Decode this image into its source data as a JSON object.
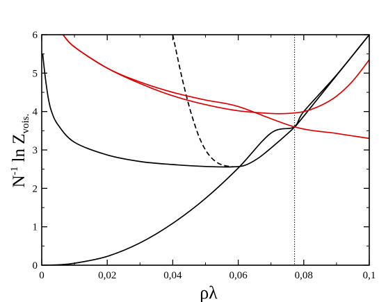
{
  "chart_data": {
    "type": "line",
    "title": "",
    "xlabel": "ρλ",
    "ylabel_main": "N",
    "ylabel_sup": "-1",
    "ylabel_mid": " ln Z",
    "ylabel_sub": "vois.",
    "xlim": [
      0,
      0.1
    ],
    "ylim": [
      0,
      6
    ],
    "grid": false,
    "x_ticks": [
      {
        "value": 0,
        "label": "0"
      },
      {
        "value": 0.02,
        "label": "0,02"
      },
      {
        "value": 0.04,
        "label": "0,04"
      },
      {
        "value": 0.06,
        "label": "0,06"
      },
      {
        "value": 0.08,
        "label": "0,08"
      },
      {
        "value": 0.1,
        "label": "0,1"
      }
    ],
    "y_ticks": [
      {
        "value": 0,
        "label": "0"
      },
      {
        "value": 1,
        "label": "1"
      },
      {
        "value": 2,
        "label": "2"
      },
      {
        "value": 3,
        "label": "3"
      },
      {
        "value": 4,
        "label": "4"
      },
      {
        "value": 5,
        "label": "5"
      },
      {
        "value": 6,
        "label": "6"
      }
    ],
    "vline": {
      "x": 0.0772,
      "color": "#000000",
      "style": "dotted"
    },
    "series": [
      {
        "color": "#000000",
        "style": "solid",
        "points": [
          [
            0,
            0
          ],
          [
            0.005,
            0.01
          ],
          [
            0.01,
            0.05
          ],
          [
            0.02,
            0.23
          ],
          [
            0.03,
            0.58
          ],
          [
            0.04,
            1.09
          ],
          [
            0.05,
            1.74
          ],
          [
            0.06,
            2.53
          ],
          [
            0.07,
            3.44
          ],
          [
            0.077,
            3.6
          ],
          [
            0.08,
            4.0
          ],
          [
            0.09,
            4.95
          ],
          [
            0.1,
            6.0
          ]
        ]
      },
      {
        "color": "#000000",
        "style": "solid",
        "points": [
          [
            0.0003,
            5.5
          ],
          [
            0.001,
            4.95
          ],
          [
            0.002,
            4.35
          ],
          [
            0.003,
            4.0
          ],
          [
            0.005,
            3.65
          ],
          [
            0.01,
            3.2
          ],
          [
            0.02,
            2.87
          ],
          [
            0.03,
            2.7
          ],
          [
            0.04,
            2.62
          ],
          [
            0.05,
            2.57
          ],
          [
            0.058,
            2.56
          ],
          [
            0.062,
            2.6
          ],
          [
            0.066,
            2.78
          ],
          [
            0.07,
            3.05
          ],
          [
            0.075,
            3.42
          ],
          [
            0.0772,
            3.6
          ],
          [
            0.08,
            3.88
          ],
          [
            0.1,
            6.0
          ]
        ]
      },
      {
        "color": "#000000",
        "style": "dashed",
        "points": [
          [
            0.04,
            6.0
          ],
          [
            0.0425,
            5.0
          ],
          [
            0.0445,
            4.3
          ],
          [
            0.046,
            3.85
          ],
          [
            0.048,
            3.35
          ],
          [
            0.05,
            3.0
          ],
          [
            0.052,
            2.78
          ],
          [
            0.054,
            2.65
          ],
          [
            0.056,
            2.59
          ],
          [
            0.0585,
            2.56
          ]
        ]
      },
      {
        "color": "#dd0000",
        "style": "solid",
        "points": [
          [
            0.0065,
            6.0
          ],
          [
            0.01,
            5.68
          ],
          [
            0.02,
            5.13
          ],
          [
            0.03,
            4.77
          ],
          [
            0.04,
            4.5
          ],
          [
            0.05,
            4.3
          ],
          [
            0.06,
            4.13
          ],
          [
            0.0772,
            3.6
          ],
          [
            0.09,
            3.43
          ],
          [
            0.1,
            3.3
          ]
        ]
      },
      {
        "color": "#dd0000",
        "style": "solid",
        "points": [
          [
            0.0065,
            6.0
          ],
          [
            0.01,
            5.68
          ],
          [
            0.02,
            5.13
          ],
          [
            0.03,
            4.73
          ],
          [
            0.04,
            4.41
          ],
          [
            0.05,
            4.18
          ],
          [
            0.06,
            4.02
          ],
          [
            0.07,
            3.95
          ],
          [
            0.075,
            3.95
          ],
          [
            0.08,
            4.0
          ],
          [
            0.085,
            4.15
          ],
          [
            0.09,
            4.4
          ],
          [
            0.095,
            4.8
          ],
          [
            0.1,
            5.35
          ]
        ]
      }
    ]
  }
}
